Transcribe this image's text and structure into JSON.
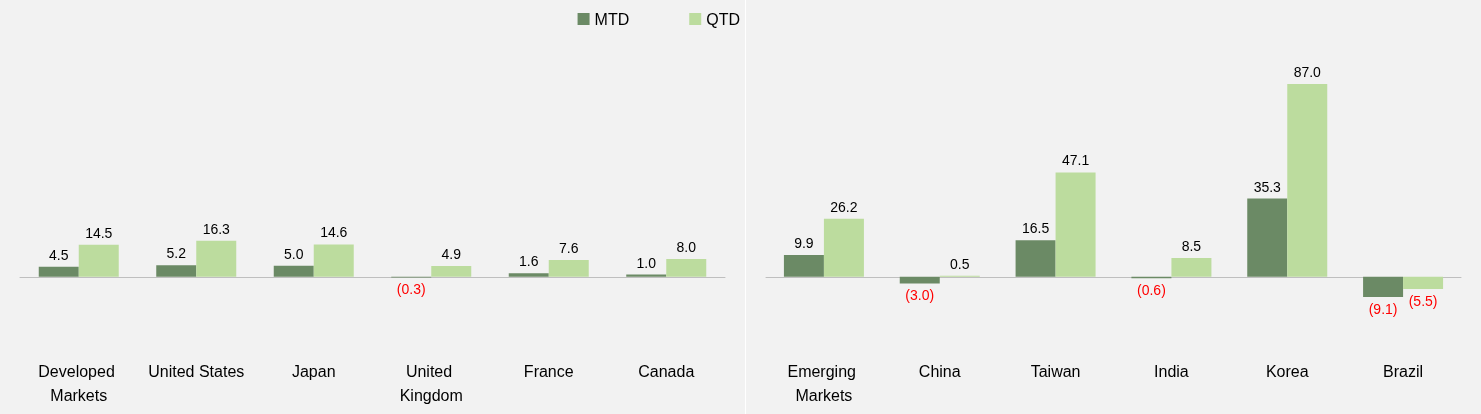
{
  "chart_data": [
    {
      "type": "bar",
      "categories": [
        "Developed Markets",
        "United States",
        "Japan",
        "United Kingdom",
        "France",
        "Canada"
      ],
      "series": [
        {
          "name": "MTD",
          "color": "#6b8a65",
          "values": [
            4.5,
            5.2,
            5.0,
            -0.3,
            1.6,
            1.0
          ],
          "value_labels": [
            "4.5",
            "5.2",
            "5.0",
            "(0.3)",
            "1.6",
            "1.0"
          ]
        },
        {
          "name": "QTD",
          "color": "#bcdc9e",
          "values": [
            14.5,
            16.3,
            14.6,
            4.9,
            7.6,
            8.0
          ],
          "value_labels": [
            "14.5",
            "16.3",
            "14.6",
            "4.9",
            "7.6",
            "8.0"
          ]
        }
      ],
      "legend": "top right"
    },
    {
      "type": "bar",
      "categories": [
        "Emerging Markets",
        "China",
        "Taiwan",
        "India",
        "Korea",
        "Brazil"
      ],
      "series": [
        {
          "color": "#6b8a65",
          "values": [
            9.9,
            -3.0,
            16.5,
            -0.6,
            35.3,
            -9.1
          ],
          "value_labels": [
            "9.9",
            "(3.0)",
            "16.5",
            "(0.6)",
            "35.3",
            "(9.1)"
          ]
        },
        {
          "color": "#bcdc9e",
          "values": [
            26.2,
            0.5,
            47.1,
            8.5,
            87.0,
            -5.5
          ],
          "value_labels": [
            "26.2",
            "0.5",
            "47.1",
            "8.5",
            "87.0",
            "(5.5)"
          ]
        }
      ]
    }
  ]
}
